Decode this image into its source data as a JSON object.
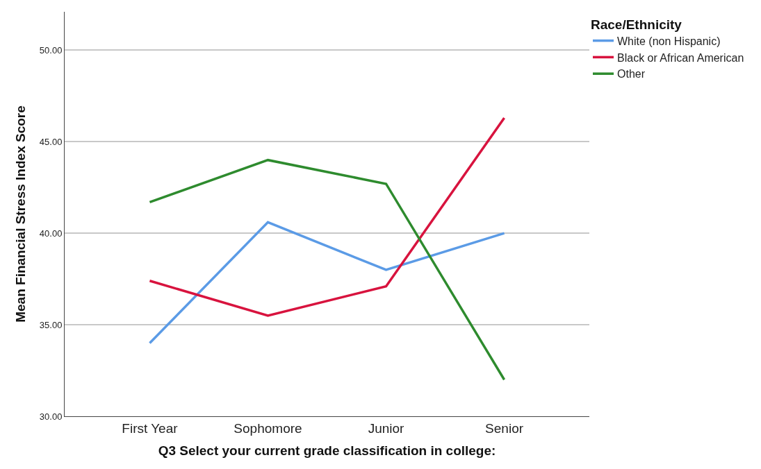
{
  "chart_data": {
    "type": "line",
    "xlabel": "Q3 Select your current grade classification in college:",
    "ylabel": "Mean Financial Stress Index Score",
    "legend_title": "Race/Ethnicity",
    "categories": [
      "First Year",
      "Sophomore",
      "Junior",
      "Senior"
    ],
    "series": [
      {
        "name": "White (non Hispanic)",
        "color": "#5b9be6",
        "values": [
          34.0,
          40.6,
          38.0,
          40.0
        ]
      },
      {
        "name": "Black or African American",
        "color": "#d8133e",
        "values": [
          37.4,
          35.5,
          37.1,
          46.3
        ]
      },
      {
        "name": "Other",
        "color": "#2e8b2e",
        "values": [
          41.7,
          44.0,
          42.7,
          32.0
        ]
      }
    ],
    "ylim": [
      30,
      52.1
    ],
    "yticks": [
      {
        "value": 30,
        "label": "30.00"
      },
      {
        "value": 35,
        "label": "35.00"
      },
      {
        "value": 40,
        "label": "40.00"
      },
      {
        "value": 45,
        "label": "45.00"
      },
      {
        "value": 50,
        "label": "50.00"
      }
    ],
    "grid": "y",
    "legend": "top right",
    "marker": "none",
    "line_style": "solid"
  }
}
